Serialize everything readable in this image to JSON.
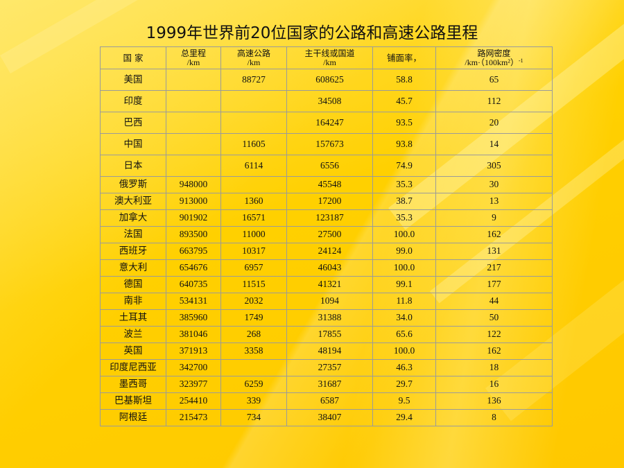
{
  "title": "1999年世界前20位国家的公路和高速公路里程",
  "headers": {
    "country": "国 家",
    "total_line1": "总里程",
    "total_line2": "/km",
    "highway_line1": "高速公路",
    "highway_line2": "/km",
    "trunk_line1": "主干线或国道",
    "trunk_line2": "/km",
    "paved": "铺面率，",
    "density_line1": "路网密度",
    "density_line2": "/km·（100km²）",
    "density_sup": "-1"
  },
  "rows": [
    {
      "country": "美国",
      "total": "",
      "highway": "88727",
      "trunk": "608625",
      "paved": "58.8",
      "density": "65"
    },
    {
      "country": "印度",
      "total": "",
      "highway": "",
      "trunk": "34508",
      "paved": "45.7",
      "density": "112"
    },
    {
      "country": "巴西",
      "total": "",
      "highway": "",
      "trunk": "164247",
      "paved": "93.5",
      "density": "20"
    },
    {
      "country": "中国",
      "total": "",
      "highway": "11605",
      "trunk": "157673",
      "paved": "93.8",
      "density": "14"
    },
    {
      "country": "日本",
      "total": "",
      "highway": "6114",
      "trunk": "6556",
      "paved": "74.9",
      "density": "305"
    },
    {
      "country": "俄罗斯",
      "total": "948000",
      "highway": "",
      "trunk": "45548",
      "paved": "35.3",
      "density": "30"
    },
    {
      "country": "澳大利亚",
      "total": "913000",
      "highway": "1360",
      "trunk": "17200",
      "paved": "38.7",
      "density": "13"
    },
    {
      "country": "加拿大",
      "total": "901902",
      "highway": "16571",
      "trunk": "123187",
      "paved": "35.3",
      "density": "9"
    },
    {
      "country": "法国",
      "total": "893500",
      "highway": "11000",
      "trunk": "27500",
      "paved": "100.0",
      "density": "162"
    },
    {
      "country": "西班牙",
      "total": "663795",
      "highway": "10317",
      "trunk": "24124",
      "paved": "99.0",
      "density": "131"
    },
    {
      "country": "意大利",
      "total": "654676",
      "highway": "6957",
      "trunk": "46043",
      "paved": "100.0",
      "density": "217"
    },
    {
      "country": "德国",
      "total": "640735",
      "highway": "11515",
      "trunk": "41321",
      "paved": "99.1",
      "density": "177"
    },
    {
      "country": "南非",
      "total": "534131",
      "highway": "2032",
      "trunk": "1094",
      "paved": "11.8",
      "density": "44"
    },
    {
      "country": "土耳其",
      "total": "385960",
      "highway": "1749",
      "trunk": "31388",
      "paved": "34.0",
      "density": "50"
    },
    {
      "country": "波兰",
      "total": "381046",
      "highway": "268",
      "trunk": "17855",
      "paved": "65.6",
      "density": "122"
    },
    {
      "country": "英国",
      "total": "371913",
      "highway": "3358",
      "trunk": "48194",
      "paved": "100.0",
      "density": "162"
    },
    {
      "country": "印度尼西亚",
      "total": "342700",
      "highway": "",
      "trunk": "27357",
      "paved": "46.3",
      "density": "18"
    },
    {
      "country": "墨西哥",
      "total": "323977",
      "highway": "6259",
      "trunk": "31687",
      "paved": "29.7",
      "density": "16"
    },
    {
      "country": "巴基斯坦",
      "total": "254410",
      "highway": "339",
      "trunk": "6587",
      "paved": "9.5",
      "density": "136"
    },
    {
      "country": "阿根廷",
      "total": "215473",
      "highway": "734",
      "trunk": "38407",
      "paved": "29.4",
      "density": "8"
    }
  ]
}
